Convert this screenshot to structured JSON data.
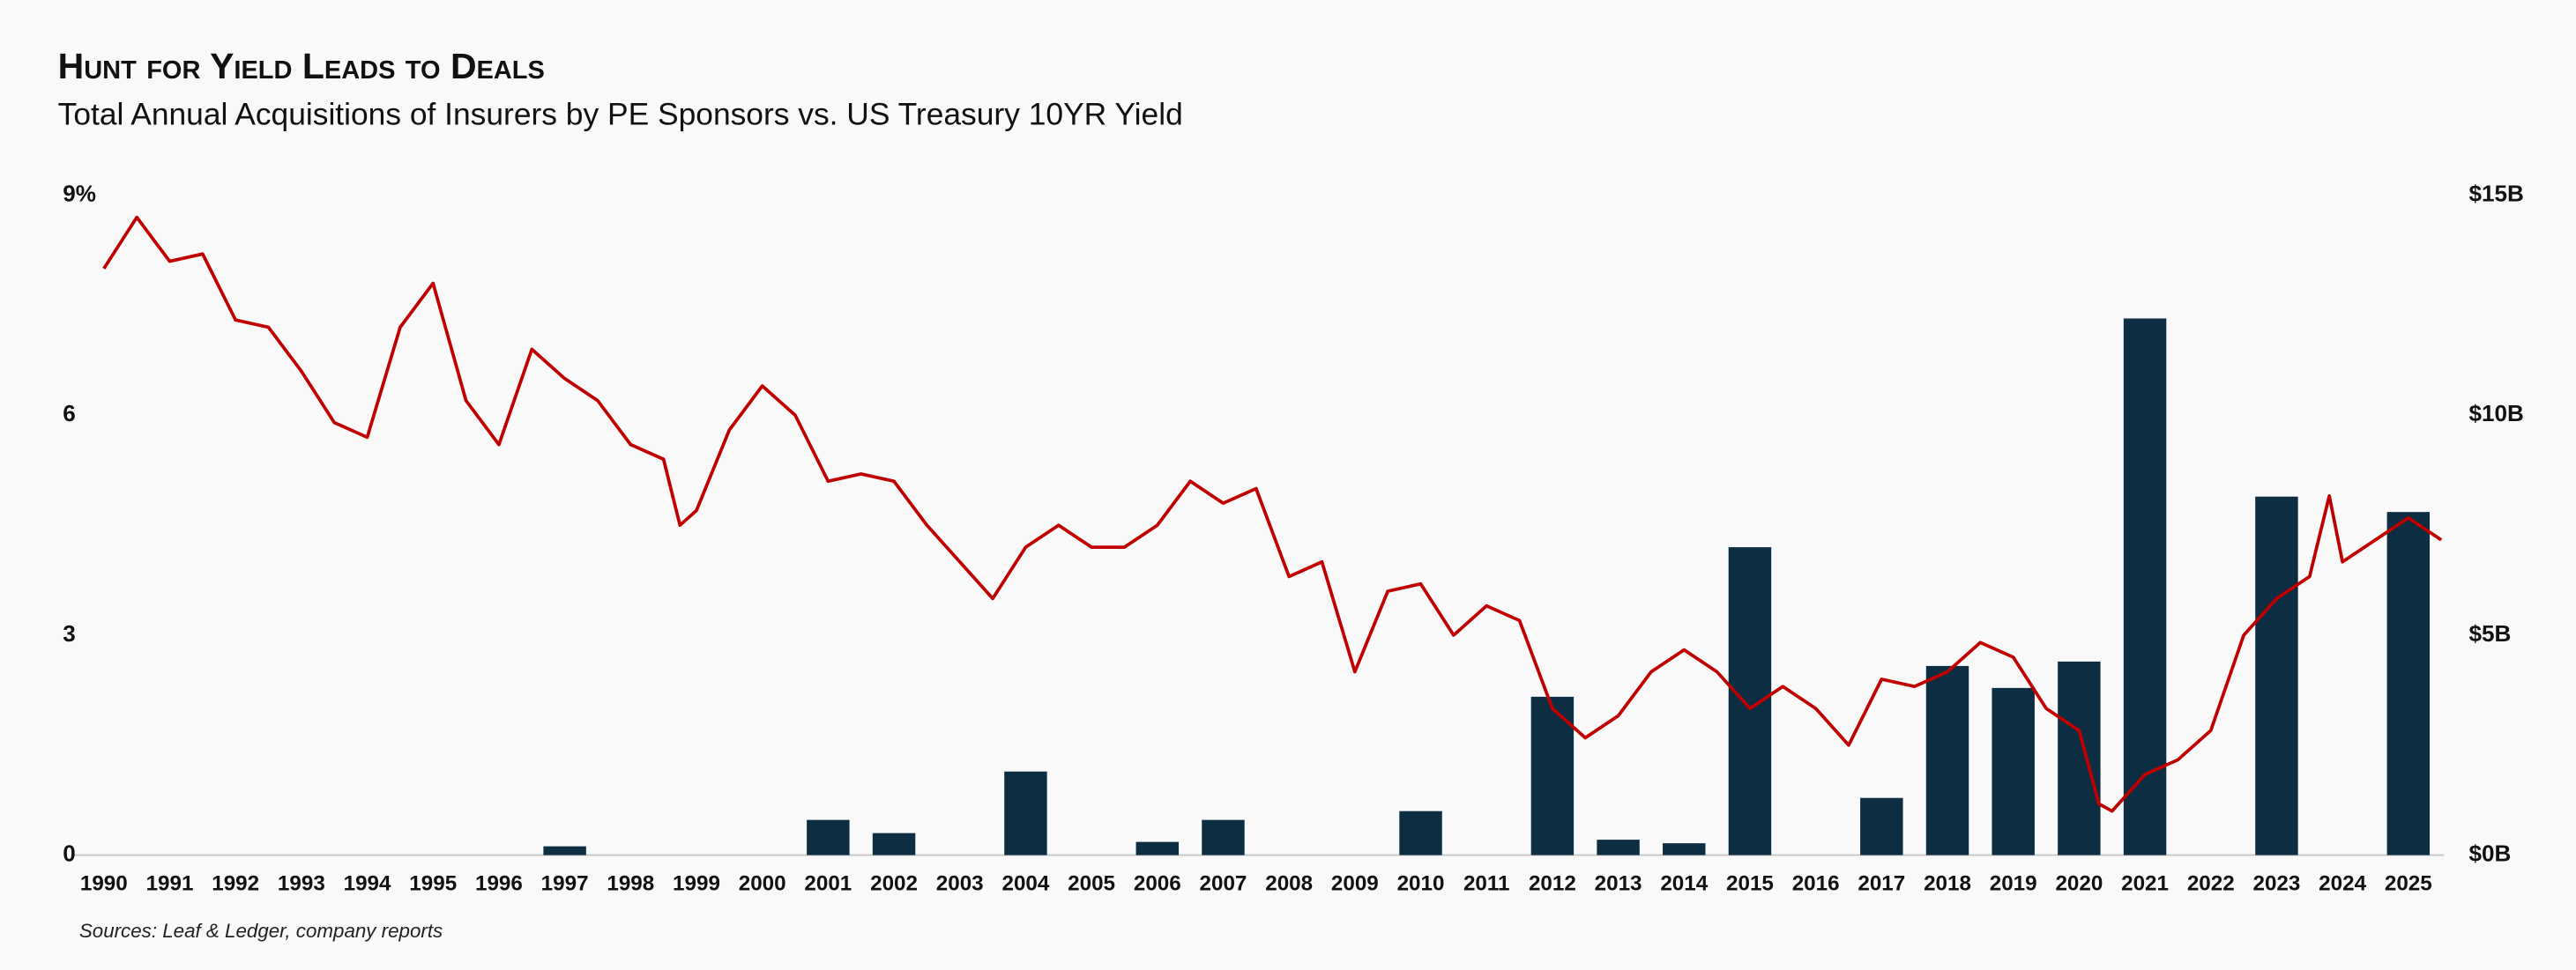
{
  "chart_data": {
    "type": "combo",
    "title": "Hunt for Yield Leads to Deals",
    "subtitle": "Total Annual Acquisitions  of Insurers by PE Sponsors vs. US Treasury 10YR Yield",
    "source": "Sources: Leaf & Ledger, company reports",
    "categories": [
      "1990",
      "1991",
      "1992",
      "1993",
      "1994",
      "1995",
      "1996",
      "1997",
      "1998",
      "1999",
      "2000",
      "2001",
      "2002",
      "2003",
      "2004",
      "2005",
      "2006",
      "2007",
      "2008",
      "2009",
      "2010",
      "2011",
      "2012",
      "2013",
      "2014",
      "2015",
      "2016",
      "2017",
      "2018",
      "2019",
      "2020",
      "2021",
      "2022",
      "2023",
      "2024",
      "2025"
    ],
    "ylim": [
      0,
      9
    ],
    "yticks": [
      0,
      3,
      6,
      {
        "value": 9,
        "label": "9%"
      }
    ],
    "y2lim": [
      0,
      15
    ],
    "y2ticks": [
      {
        "value": 0,
        "label": "$0B"
      },
      {
        "value": 5,
        "label": "$5B"
      },
      {
        "value": 10,
        "label": "$10B"
      },
      {
        "value": 15,
        "label": "$15B"
      }
    ],
    "series": [
      {
        "type": "bar",
        "axis": "y2",
        "color": "#0c2d42",
        "values": [
          0,
          0,
          0,
          0,
          0,
          0,
          0,
          0.2,
          0,
          0,
          0,
          0.8,
          0.5,
          0,
          1.9,
          0,
          0.3,
          0.8,
          0,
          0,
          1.0,
          0,
          3.6,
          0.35,
          0.27,
          7.0,
          0,
          1.3,
          4.3,
          3.8,
          4.4,
          12.2,
          0,
          8.15,
          0,
          7.8
        ]
      },
      {
        "type": "line",
        "color": "#c00000",
        "x": [
          1990.0,
          1990.5,
          1991.0,
          1991.5,
          1992.0,
          1992.5,
          1993.0,
          1993.5,
          1994.0,
          1994.5,
          1995.0,
          1995.5,
          1996.0,
          1996.5,
          1997.0,
          1997.5,
          1998.0,
          1998.5,
          1998.75,
          1999.0,
          1999.5,
          2000.0,
          2000.5,
          2001.0,
          2001.5,
          2002.0,
          2002.5,
          2003.0,
          2003.5,
          2004.0,
          2004.5,
          2005.0,
          2005.5,
          2006.0,
          2006.5,
          2007.0,
          2007.5,
          2008.0,
          2008.5,
          2009.0,
          2009.5,
          2010.0,
          2010.5,
          2011.0,
          2011.5,
          2012.0,
          2012.5,
          2013.0,
          2013.5,
          2014.0,
          2014.5,
          2015.0,
          2015.5,
          2016.0,
          2016.5,
          2017.0,
          2017.5,
          2018.0,
          2018.5,
          2019.0,
          2019.5,
          2020.0,
          2020.3,
          2020.5,
          2021.0,
          2021.5,
          2022.0,
          2022.5,
          2023.0,
          2023.5,
          2023.8,
          2024.0,
          2024.5,
          2025.0,
          2025.5
        ],
        "values": [
          8.0,
          8.7,
          8.1,
          8.2,
          7.3,
          7.2,
          6.6,
          5.9,
          5.7,
          7.2,
          7.8,
          6.2,
          5.6,
          6.9,
          6.5,
          6.2,
          5.6,
          5.4,
          4.5,
          4.7,
          5.8,
          6.4,
          6.0,
          5.1,
          5.2,
          5.1,
          4.5,
          4.0,
          3.5,
          4.2,
          4.5,
          4.2,
          4.2,
          4.5,
          5.1,
          4.8,
          5.0,
          3.8,
          4.0,
          2.5,
          3.6,
          3.7,
          3.0,
          3.4,
          3.2,
          2.0,
          1.6,
          1.9,
          2.5,
          2.8,
          2.5,
          2.0,
          2.3,
          2.0,
          1.5,
          2.4,
          2.3,
          2.5,
          2.9,
          2.7,
          2.0,
          1.7,
          0.7,
          0.6,
          1.1,
          1.3,
          1.7,
          3.0,
          3.5,
          3.8,
          4.9,
          4.0,
          4.3,
          4.6,
          4.3
        ]
      }
    ]
  }
}
